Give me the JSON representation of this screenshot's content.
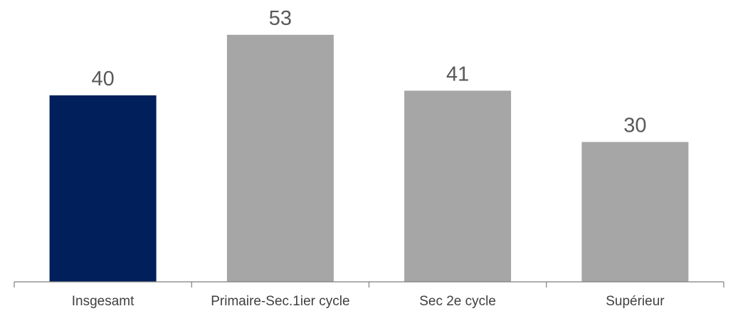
{
  "chart_data": {
    "type": "bar",
    "categories": [
      "Insgesamt",
      "Primaire-Sec.1ier cycle",
      "Sec 2e cycle",
      "Supérieur"
    ],
    "values": [
      40,
      53,
      41,
      30
    ],
    "bar_colors": [
      "#001f5b",
      "#a6a6a6",
      "#a6a6a6",
      "#a6a6a6"
    ],
    "title": "",
    "xlabel": "",
    "ylabel": "",
    "ylim": [
      0,
      60
    ],
    "grid": false,
    "data_labels": true,
    "legend": "none"
  }
}
